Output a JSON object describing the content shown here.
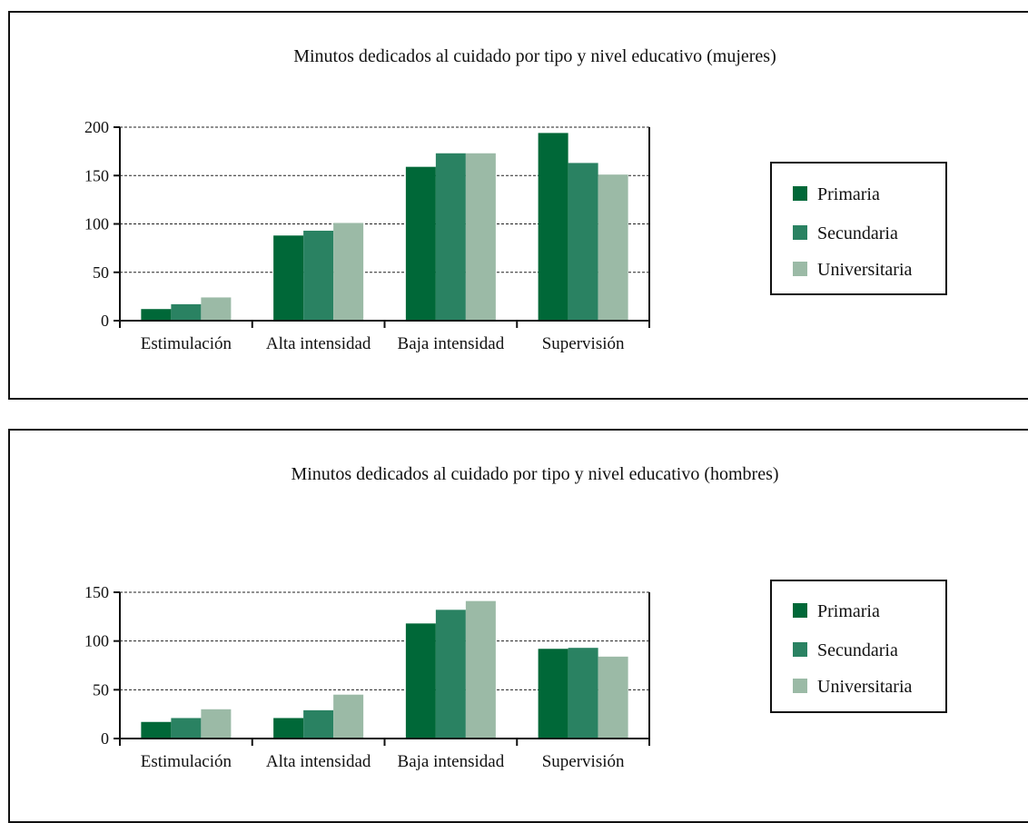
{
  "colors": {
    "primaria": "#006838",
    "secundaria": "#2a8262",
    "universitaria": "#9bbaa6",
    "axis": "#111111",
    "gridline": "#222222"
  },
  "chart_data": [
    {
      "type": "bar",
      "title": "Minutos dedicados al cuidado por tipo y nivel educativo (mujeres)",
      "categories": [
        "Estimulación",
        "Alta intensidad",
        "Baja intensidad",
        "Supervisión"
      ],
      "series": [
        {
          "name": "Primaria",
          "values": [
            12,
            88,
            159,
            194
          ]
        },
        {
          "name": "Secundaria",
          "values": [
            17,
            93,
            173,
            163
          ]
        },
        {
          "name": "Universitaria",
          "values": [
            24,
            101,
            173,
            151
          ]
        }
      ],
      "ylim": [
        0,
        200
      ],
      "yticks": [
        "0",
        "50",
        "100",
        "150",
        "200"
      ],
      "ytick_values": [
        0,
        50,
        100,
        150,
        200
      ],
      "grid": true,
      "legend": "right"
    },
    {
      "type": "bar",
      "title": "Minutos dedicados al cuidado por tipo y nivel educativo (hombres)",
      "categories": [
        "Estimulación",
        "Alta intensidad",
        "Baja intensidad",
        "Supervisión"
      ],
      "series": [
        {
          "name": "Primaria",
          "values": [
            17,
            21,
            118,
            92
          ]
        },
        {
          "name": "Secundaria",
          "values": [
            21,
            29,
            132,
            93
          ]
        },
        {
          "name": "Universitaria",
          "values": [
            30,
            45,
            141,
            84
          ]
        }
      ],
      "ylim": [
        0,
        150
      ],
      "yticks": [
        "0",
        "50",
        "100",
        "150"
      ],
      "ytick_values": [
        0,
        50,
        100,
        150
      ],
      "grid": true,
      "legend": "right"
    }
  ]
}
